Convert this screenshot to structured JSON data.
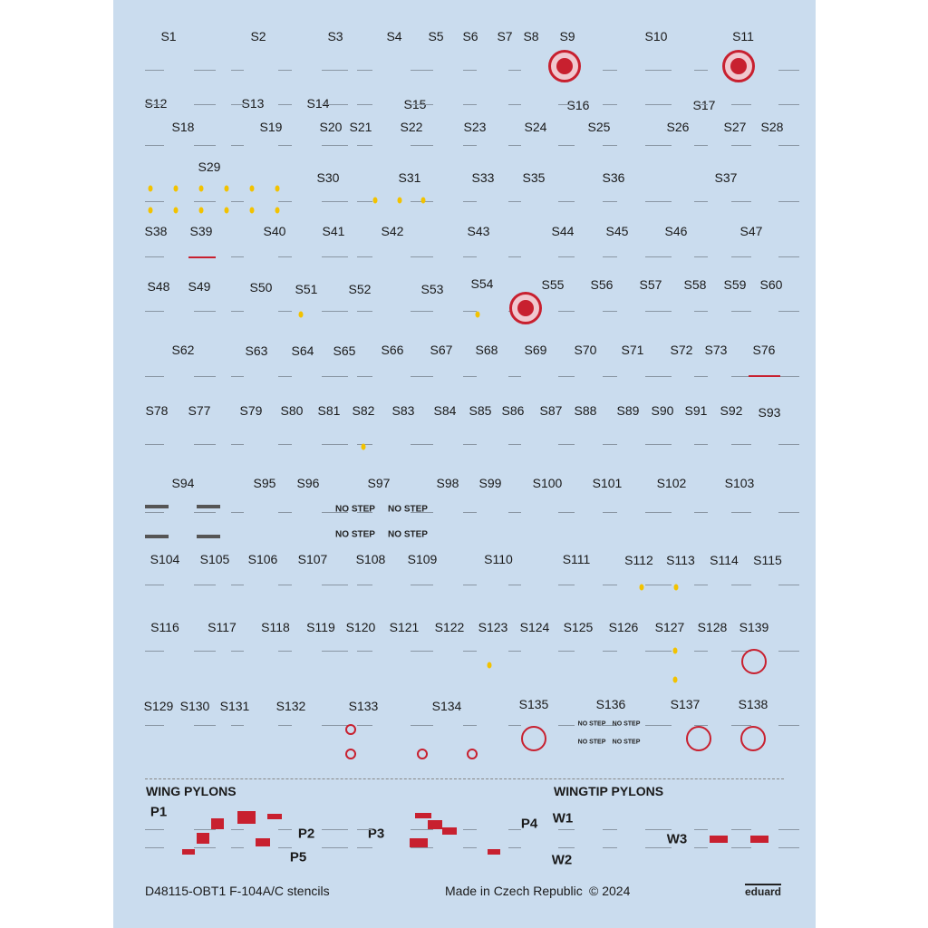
{
  "sheet": {
    "background": "#cadcee",
    "accent_red": "#c8202f",
    "stencil_yellow": "#f2c200"
  },
  "labels": [
    "S1",
    "S2",
    "S3",
    "S4",
    "S5",
    "S6",
    "S7",
    "S8",
    "S9",
    "S10",
    "S11",
    "S12",
    "S13",
    "S14",
    "S15",
    "S16",
    "S17",
    "S18",
    "S19",
    "S20",
    "S21",
    "S22",
    "S23",
    "S24",
    "S25",
    "S26",
    "S27",
    "S28",
    "S29",
    "S30",
    "S31",
    "S33",
    "S35",
    "S36",
    "S37",
    "S38",
    "S39",
    "S40",
    "S41",
    "S42",
    "S43",
    "S44",
    "S45",
    "S46",
    "S47",
    "S48",
    "S49",
    "S50",
    "S51",
    "S52",
    "S53",
    "S54",
    "S55",
    "S56",
    "S57",
    "S58",
    "S59",
    "S60",
    "S62",
    "S63",
    "S64",
    "S65",
    "S66",
    "S67",
    "S68",
    "S69",
    "S70",
    "S71",
    "S72",
    "S73",
    "S76",
    "S78",
    "S77",
    "S79",
    "S80",
    "S81",
    "S82",
    "S83",
    "S84",
    "S85",
    "S86",
    "S87",
    "S88",
    "S89",
    "S90",
    "S91",
    "S92",
    "S93",
    "S94",
    "S95",
    "S96",
    "S97",
    "S98",
    "S99",
    "S100",
    "S101",
    "S102",
    "S103",
    "S104",
    "S105",
    "S106",
    "S107",
    "S108",
    "S109",
    "S110",
    "S111",
    "S112",
    "S113",
    "S114",
    "S115",
    "S116",
    "S117",
    "S118",
    "S119",
    "S120",
    "S121",
    "S122",
    "S123",
    "S124",
    "S125",
    "S126",
    "S127",
    "S128",
    "S139",
    "S129",
    "S130",
    "S131",
    "S132",
    "S133",
    "S134",
    "S135",
    "S136",
    "S137",
    "S138"
  ],
  "sections": {
    "wing_pylons": "WING PYLONS",
    "wingtip_pylons": "WINGTIP PYLONS"
  },
  "pylons": [
    "P1",
    "P2",
    "P3",
    "P4",
    "P5",
    "W1",
    "W2",
    "W3"
  ],
  "no_step": "NO STEP",
  "footer": {
    "product": "D48115-OBT1 F-104A/C stencils",
    "origin": "Made in Czech Republic",
    "copyright": "© 2024",
    "brand": "eduard"
  }
}
